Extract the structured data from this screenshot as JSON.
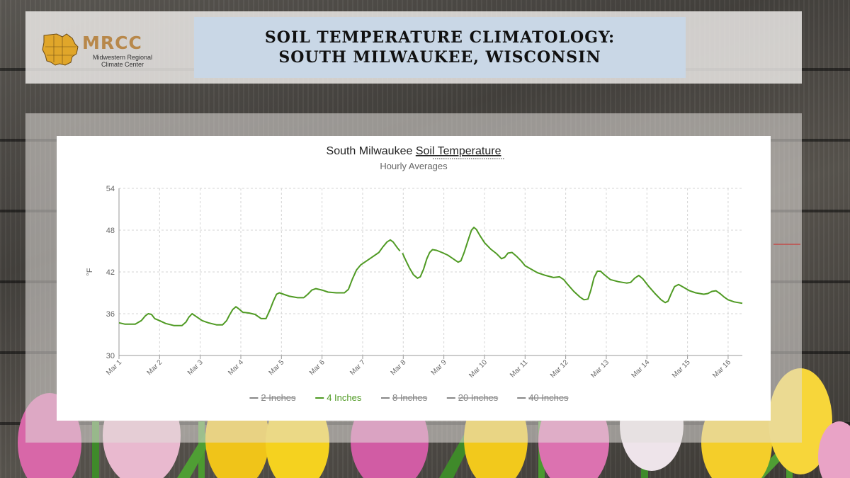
{
  "header": {
    "logo": {
      "name": "MRCC",
      "subtitle_line1": "Midwestern Regional",
      "subtitle_line2": "Climate Center"
    },
    "title_line1": "SOIL TEMPERATURE CLIMATOLOGY:",
    "title_line2": "SOUTH MILWAUKEE, WISCONSIN"
  },
  "chart_data": {
    "type": "line",
    "title_prefix": "South Milwaukee ",
    "title_link": "Soil Temperature",
    "subtitle": "Hourly Averages",
    "ylabel": "°F",
    "xlabel": "",
    "ylim": [
      30,
      54
    ],
    "yticks": [
      30,
      36,
      42,
      48,
      54
    ],
    "xlim": [
      0,
      15.35
    ],
    "x_tick_labels": [
      "Mar 1",
      "Mar 2",
      "Mar 3",
      "Mar 4",
      "Mar 5",
      "Mar 6",
      "Mar 7",
      "Mar 8",
      "Mar 9",
      "Mar 10",
      "Mar 11",
      "Mar 12",
      "Mar 13",
      "Mar 14",
      "Mar 15",
      "Mar 16"
    ],
    "grid": true,
    "legend_position": "bottom",
    "series": [
      {
        "name": "2 Inches",
        "visible": false,
        "color": "#888888",
        "points": []
      },
      {
        "name": "4 Inches",
        "visible": true,
        "color": "#4f9a23",
        "points": [
          [
            0,
            34.7
          ],
          [
            0.15,
            34.5
          ],
          [
            0.4,
            34.5
          ],
          [
            0.55,
            35.0
          ],
          [
            0.65,
            35.7
          ],
          [
            0.72,
            36.0
          ],
          [
            0.8,
            35.9
          ],
          [
            0.88,
            35.3
          ],
          [
            1.0,
            35.0
          ],
          [
            1.15,
            34.6
          ],
          [
            1.35,
            34.3
          ],
          [
            1.55,
            34.3
          ],
          [
            1.65,
            34.8
          ],
          [
            1.72,
            35.5
          ],
          [
            1.8,
            36.0
          ],
          [
            1.9,
            35.6
          ],
          [
            2.05,
            35.0
          ],
          [
            2.2,
            34.7
          ],
          [
            2.4,
            34.4
          ],
          [
            2.55,
            34.4
          ],
          [
            2.65,
            35.0
          ],
          [
            2.72,
            35.8
          ],
          [
            2.8,
            36.6
          ],
          [
            2.88,
            37.0
          ],
          [
            2.95,
            36.7
          ],
          [
            3.05,
            36.2
          ],
          [
            3.2,
            36.1
          ],
          [
            3.35,
            35.9
          ],
          [
            3.5,
            35.3
          ],
          [
            3.62,
            35.3
          ],
          [
            3.72,
            36.6
          ],
          [
            3.8,
            37.8
          ],
          [
            3.88,
            38.8
          ],
          [
            3.95,
            39.0
          ],
          [
            4.05,
            38.8
          ],
          [
            4.2,
            38.5
          ],
          [
            4.4,
            38.3
          ],
          [
            4.55,
            38.3
          ],
          [
            4.65,
            38.8
          ],
          [
            4.75,
            39.4
          ],
          [
            4.85,
            39.6
          ],
          [
            5.0,
            39.4
          ],
          [
            5.15,
            39.1
          ],
          [
            5.35,
            39.0
          ],
          [
            5.55,
            39.0
          ],
          [
            5.65,
            39.5
          ],
          [
            5.75,
            41.0
          ],
          [
            5.85,
            42.3
          ],
          [
            5.95,
            43.0
          ],
          [
            6.1,
            43.6
          ],
          [
            6.25,
            44.2
          ],
          [
            6.4,
            44.8
          ],
          [
            6.5,
            45.6
          ],
          [
            6.6,
            46.3
          ],
          [
            6.68,
            46.6
          ],
          [
            6.75,
            46.3
          ],
          [
            6.85,
            45.5
          ],
          [
            6.92,
            45.0
          ]
        ],
        "points_segment2": [
          [
            6.98,
            44.7
          ],
          [
            7.05,
            43.8
          ],
          [
            7.15,
            42.6
          ],
          [
            7.25,
            41.6
          ],
          [
            7.35,
            41.1
          ],
          [
            7.42,
            41.3
          ],
          [
            7.5,
            42.4
          ],
          [
            7.58,
            43.9
          ],
          [
            7.65,
            44.8
          ],
          [
            7.72,
            45.2
          ],
          [
            7.82,
            45.1
          ],
          [
            7.95,
            44.8
          ],
          [
            8.1,
            44.4
          ],
          [
            8.25,
            43.8
          ],
          [
            8.35,
            43.4
          ],
          [
            8.42,
            43.6
          ],
          [
            8.5,
            44.8
          ],
          [
            8.6,
            46.6
          ],
          [
            8.68,
            48.0
          ],
          [
            8.74,
            48.4
          ],
          [
            8.8,
            48.1
          ],
          [
            8.88,
            47.3
          ],
          [
            9.0,
            46.2
          ],
          [
            9.15,
            45.3
          ],
          [
            9.3,
            44.6
          ],
          [
            9.42,
            43.9
          ],
          [
            9.5,
            44.1
          ],
          [
            9.58,
            44.7
          ],
          [
            9.68,
            44.8
          ],
          [
            9.8,
            44.2
          ],
          [
            9.9,
            43.6
          ],
          [
            10.0,
            42.9
          ],
          [
            10.15,
            42.4
          ],
          [
            10.3,
            41.9
          ],
          [
            10.5,
            41.5
          ],
          [
            10.7,
            41.2
          ],
          [
            10.85,
            41.3
          ],
          [
            10.95,
            40.9
          ],
          [
            11.05,
            40.2
          ],
          [
            11.2,
            39.2
          ],
          [
            11.35,
            38.4
          ],
          [
            11.45,
            38.0
          ],
          [
            11.55,
            38.1
          ],
          [
            11.62,
            39.4
          ],
          [
            11.7,
            41.2
          ],
          [
            11.78,
            42.1
          ],
          [
            11.86,
            42.1
          ],
          [
            11.95,
            41.6
          ],
          [
            12.1,
            40.9
          ],
          [
            12.3,
            40.6
          ],
          [
            12.5,
            40.4
          ],
          [
            12.6,
            40.5
          ],
          [
            12.7,
            41.1
          ],
          [
            12.8,
            41.5
          ],
          [
            12.9,
            41.0
          ],
          [
            13.05,
            39.9
          ],
          [
            13.2,
            38.9
          ],
          [
            13.35,
            38.0
          ],
          [
            13.45,
            37.6
          ],
          [
            13.52,
            37.8
          ],
          [
            13.6,
            38.9
          ],
          [
            13.68,
            39.9
          ],
          [
            13.78,
            40.2
          ],
          [
            13.9,
            39.8
          ],
          [
            14.05,
            39.3
          ],
          [
            14.2,
            39.0
          ],
          [
            14.4,
            38.8
          ],
          [
            14.5,
            38.9
          ],
          [
            14.6,
            39.2
          ],
          [
            14.7,
            39.3
          ],
          [
            14.8,
            38.9
          ],
          [
            14.9,
            38.4
          ],
          [
            15.0,
            38.0
          ],
          [
            15.15,
            37.7
          ],
          [
            15.25,
            37.6
          ],
          [
            15.35,
            37.5
          ]
        ]
      },
      {
        "name": "8 Inches",
        "visible": false,
        "color": "#888888",
        "points": []
      },
      {
        "name": "20 Inches",
        "visible": false,
        "color": "#888888",
        "points": []
      },
      {
        "name": "40 Inches",
        "visible": false,
        "color": "#888888",
        "points": []
      }
    ]
  }
}
